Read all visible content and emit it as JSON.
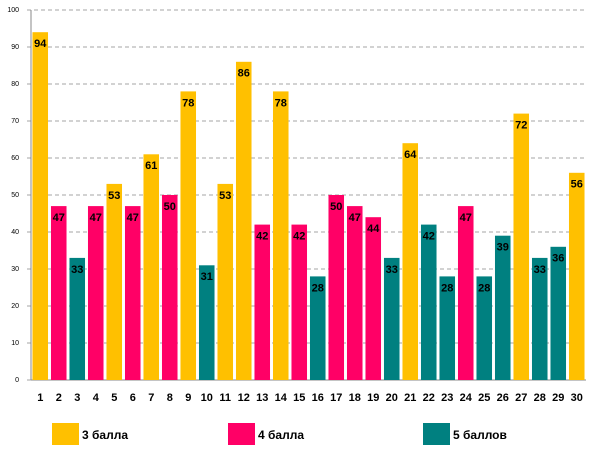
{
  "chart_data": {
    "type": "bar",
    "categories": [
      "1",
      "2",
      "3",
      "4",
      "5",
      "6",
      "7",
      "8",
      "9",
      "10",
      "11",
      "12",
      "13",
      "14",
      "15",
      "16",
      "17",
      "18",
      "19",
      "20",
      "21",
      "22",
      "23",
      "24",
      "25",
      "26",
      "27",
      "28",
      "29",
      "30"
    ],
    "series": [
      {
        "name": "3 балла",
        "color": "#FFC000",
        "values": [
          94,
          null,
          null,
          null,
          53,
          null,
          61,
          null,
          78,
          null,
          53,
          86,
          null,
          78,
          null,
          null,
          null,
          null,
          null,
          null,
          64,
          null,
          null,
          null,
          null,
          null,
          72,
          null,
          null,
          56
        ]
      },
      {
        "name": "4 балла",
        "color": "#FF0066",
        "values": [
          null,
          47,
          null,
          47,
          null,
          47,
          null,
          50,
          null,
          null,
          null,
          null,
          42,
          null,
          42,
          null,
          50,
          47,
          44,
          null,
          null,
          null,
          null,
          47,
          null,
          null,
          null,
          null,
          null,
          null
        ]
      },
      {
        "name": "5 баллов",
        "color": "#008080",
        "values": [
          null,
          null,
          33,
          null,
          null,
          null,
          null,
          null,
          null,
          31,
          null,
          null,
          null,
          null,
          null,
          28,
          null,
          null,
          null,
          33,
          null,
          42,
          28,
          null,
          28,
          39,
          null,
          33,
          36,
          null
        ]
      }
    ],
    "ylim": [
      0,
      100
    ],
    "yticks": [
      0,
      10,
      20,
      30,
      40,
      50,
      60,
      70,
      80,
      90,
      100
    ],
    "grid": true,
    "legend": "bottom"
  }
}
